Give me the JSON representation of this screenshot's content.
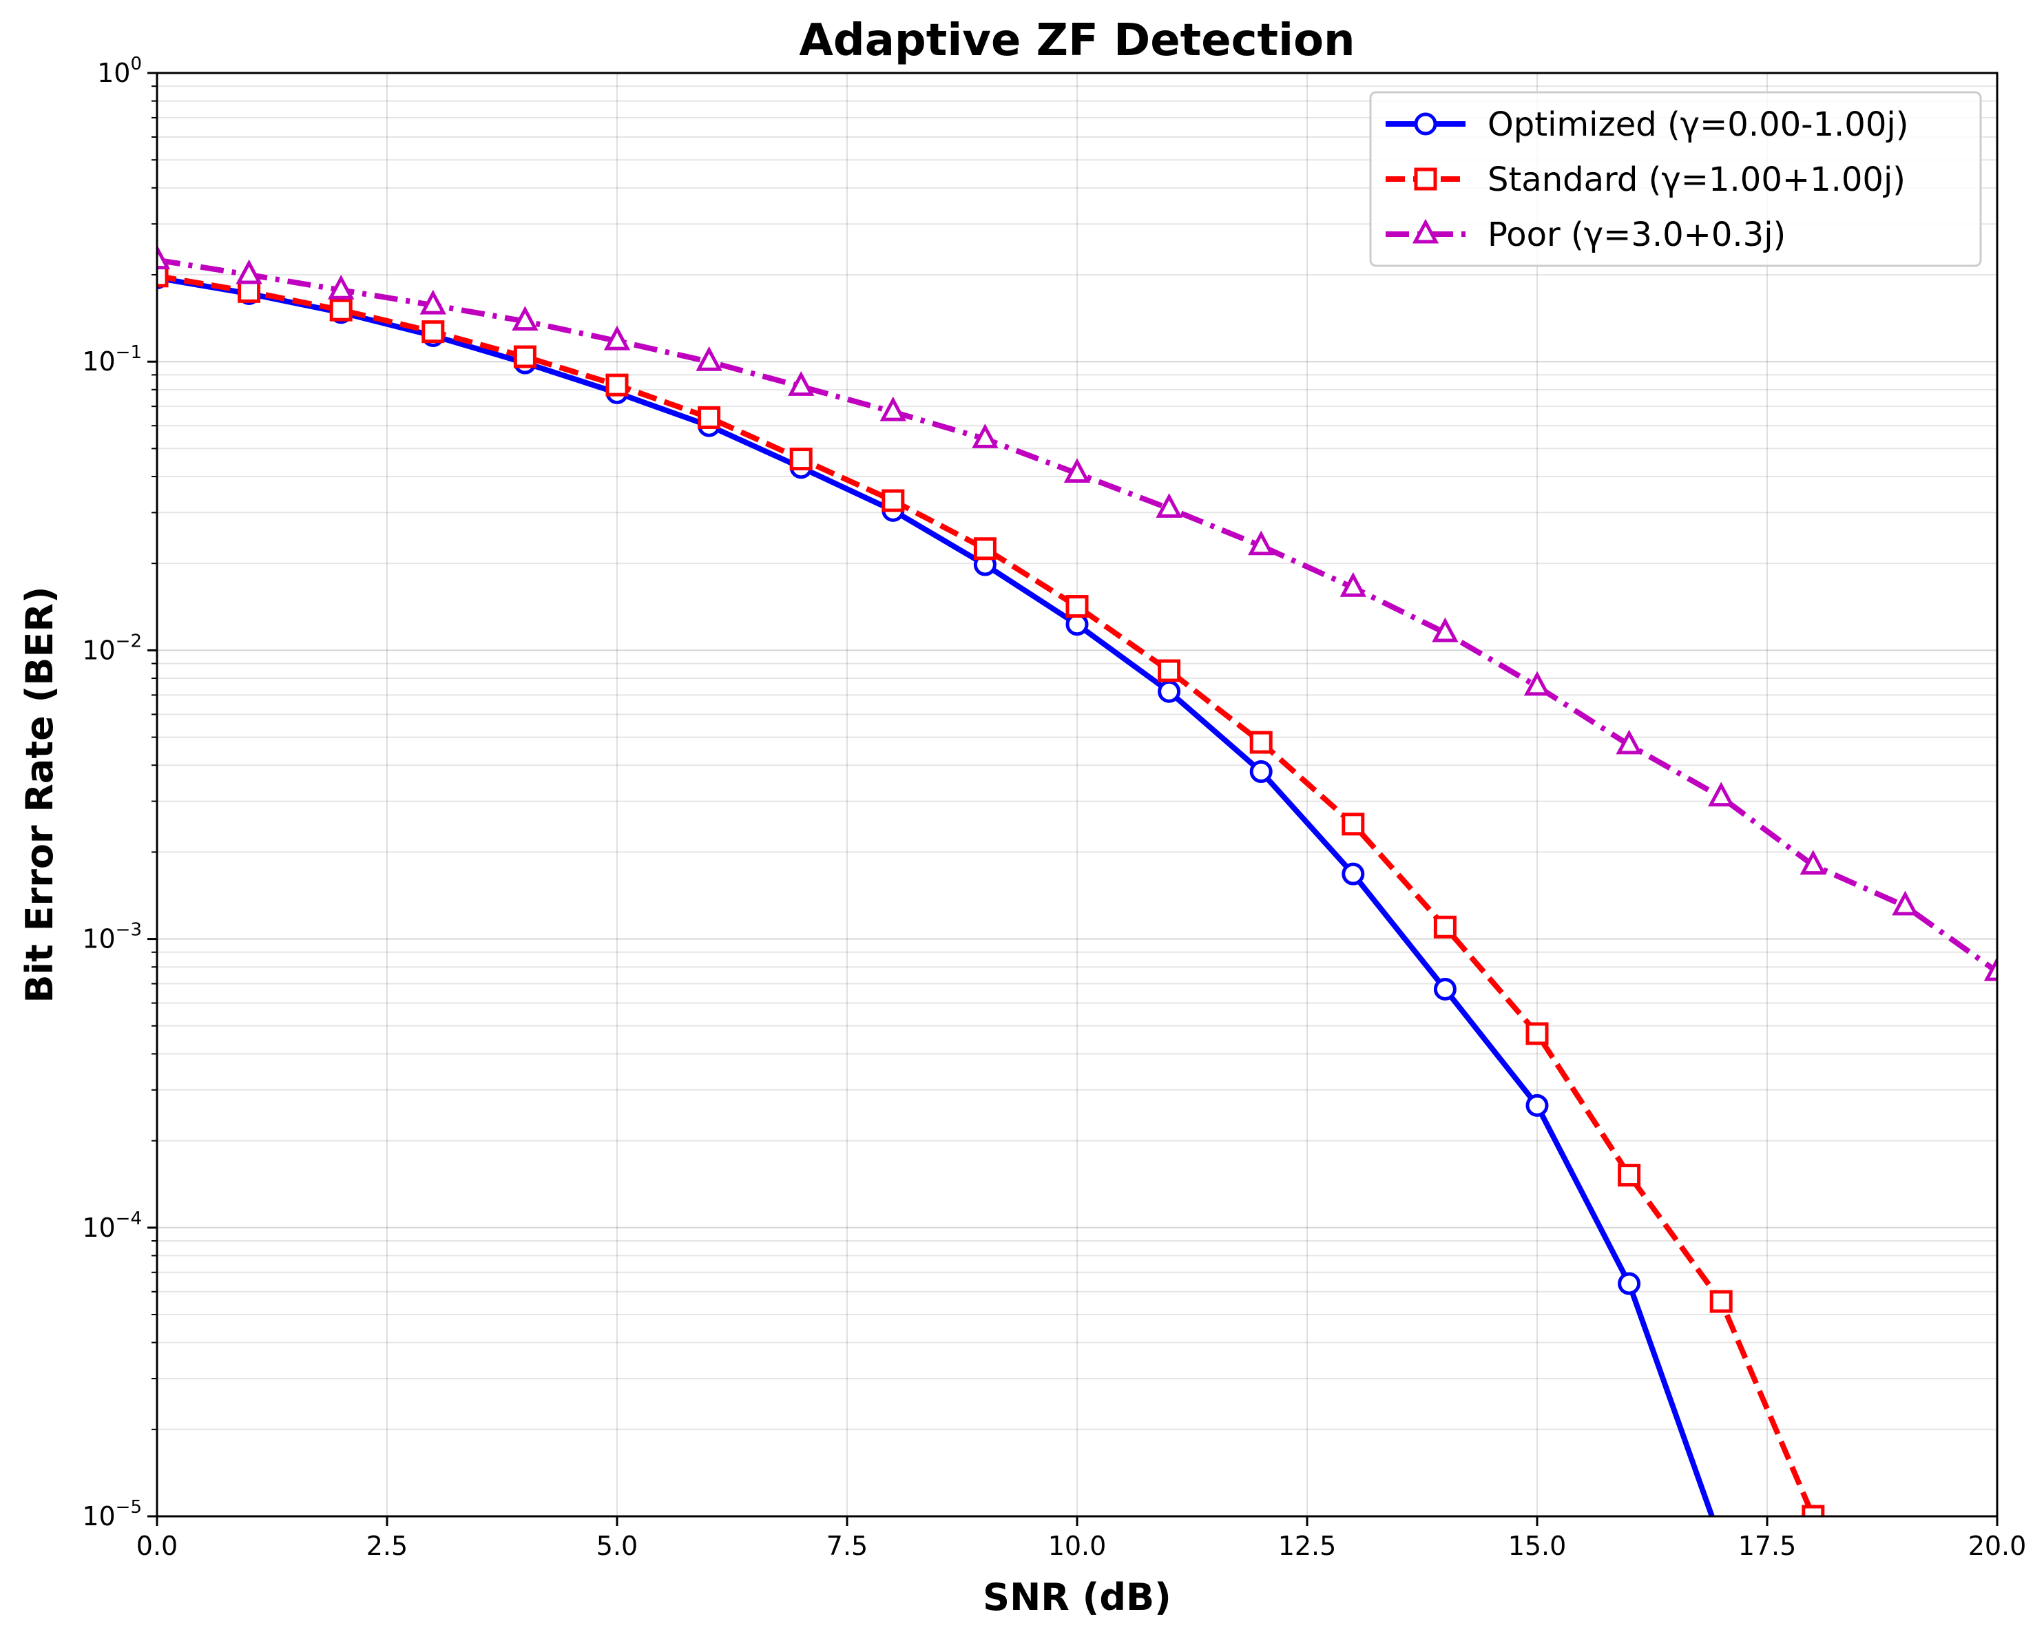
{
  "chart_data": {
    "type": "line",
    "title": "Adaptive ZF Detection",
    "xlabel": "SNR (dB)",
    "ylabel": "Bit Error Rate (BER)",
    "xlim": [
      0,
      20
    ],
    "ylim": [
      1e-05,
      1
    ],
    "yscale": "log",
    "grid": true,
    "legend_position": "top-right",
    "x_ticks": [
      "0.0",
      "2.5",
      "5.0",
      "7.5",
      "10.0",
      "12.5",
      "15.0",
      "17.5",
      "20.0"
    ],
    "y_ticks": [
      {
        "base": "10",
        "exp": "0"
      },
      {
        "base": "10",
        "exp": "−1"
      },
      {
        "base": "10",
        "exp": "−2"
      },
      {
        "base": "10",
        "exp": "−3"
      },
      {
        "base": "10",
        "exp": "−4"
      },
      {
        "base": "10",
        "exp": "−5"
      }
    ],
    "series": [
      {
        "name": "Optimized (γ=0.00-1.00j)",
        "color": "#0000ff",
        "line_style": "solid",
        "marker": "circle",
        "x": [
          0,
          1,
          2,
          3,
          4,
          5,
          6,
          7,
          8,
          9,
          10,
          11,
          12,
          13,
          14,
          15,
          16,
          16.9
        ],
        "y": [
          0.195,
          0.172,
          0.148,
          0.123,
          0.099,
          0.078,
          0.06,
          0.043,
          0.0305,
          0.0198,
          0.0123,
          0.0072,
          0.0038,
          0.00168,
          0.00067,
          0.000265,
          6.4e-05,
          1e-05
        ],
        "marker_count": 17
      },
      {
        "name": "Standard (γ=1.00+1.00j)",
        "color": "#ff0000",
        "line_style": "dashed",
        "marker": "square",
        "x": [
          0,
          1,
          2,
          3,
          4,
          5,
          6,
          7,
          8,
          9,
          10,
          11,
          12,
          13,
          14,
          15,
          16,
          17,
          18
        ],
        "y": [
          0.198,
          0.175,
          0.151,
          0.127,
          0.104,
          0.083,
          0.064,
          0.046,
          0.033,
          0.0225,
          0.0142,
          0.0085,
          0.0048,
          0.0025,
          0.0011,
          0.00047,
          0.000152,
          5.55e-05,
          1e-05
        ],
        "marker_count": 19
      },
      {
        "name": "Poor (γ=3.0+0.3j)",
        "color": "#bf00bf",
        "line_style": "dashdot",
        "marker": "triangle",
        "x": [
          0,
          1,
          2,
          3,
          4,
          5,
          6,
          7,
          8,
          9,
          10,
          11,
          12,
          13,
          14,
          15,
          16,
          17,
          18,
          19,
          20
        ],
        "y": [
          0.225,
          0.2,
          0.177,
          0.157,
          0.138,
          0.118,
          0.1,
          0.082,
          0.067,
          0.054,
          0.041,
          0.031,
          0.023,
          0.0165,
          0.0115,
          0.0075,
          0.0047,
          0.0031,
          0.0018,
          0.0013,
          0.00077
        ],
        "marker_count": 21
      }
    ]
  }
}
